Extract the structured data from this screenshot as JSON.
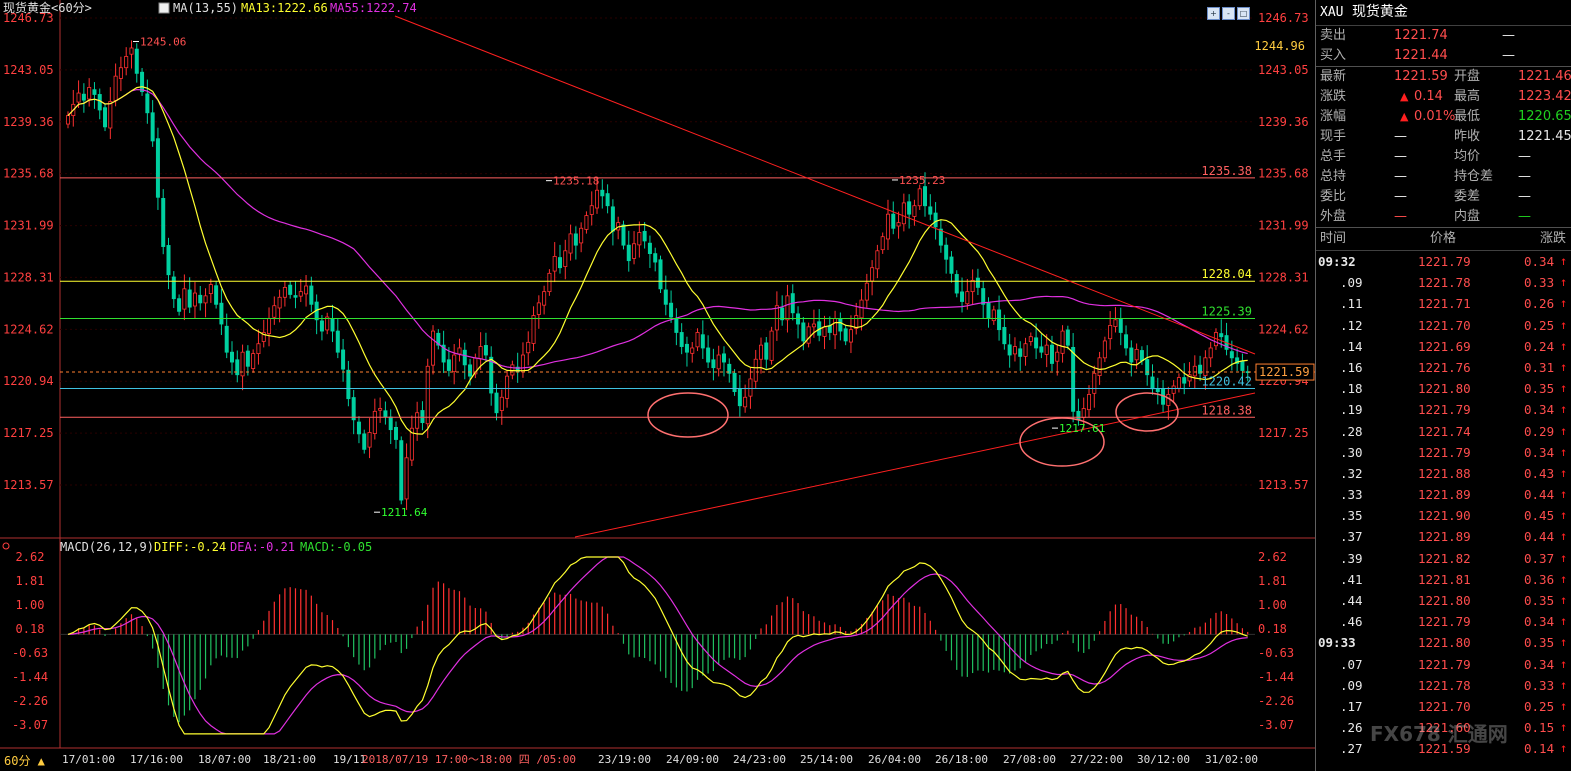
{
  "main": {
    "title": "现货黄金<60分>",
    "ma_label": "MA(13,55)",
    "ma13": "MA13:1222.66",
    "ma55": "MA55:1222.74",
    "colors": {
      "up": "#ff3030",
      "down": "#00d0a0",
      "ma13": "#ffff30",
      "ma55": "#e030e0",
      "axis": "#ff4040",
      "grid": "#400000"
    }
  },
  "macd": {
    "label": "MACD(26,12,9)",
    "diff": "DIFF:-0.24",
    "dea": "DEA:-0.21",
    "macd": "MACD:-0.05"
  },
  "chart_data": {
    "type": "candlestick",
    "price_ticks": [
      "1246.73",
      "1243.05",
      "1239.36",
      "1235.68",
      "1231.99",
      "1228.31",
      "1224.62",
      "1220.94",
      "1217.25",
      "1213.57"
    ],
    "price_range": [
      1211.64,
      1246.73
    ],
    "macd_ticks": [
      "2.62",
      "1.81",
      "1.00",
      "0.18",
      "-0.63",
      "-1.44",
      "-2.26",
      "-3.07"
    ],
    "macd_range": [
      -3.5,
      2.62
    ],
    "time_labels": [
      "17/01:00",
      "17/16:00",
      "18/07:00",
      "18/21:00",
      "19/11",
      "2018/07/19  17:00～18:00  四 /05:00",
      "23/19:00",
      "24/09:00",
      "24/23:00",
      "25/14:00",
      "26/04:00",
      "26/18:00",
      "27/08:00",
      "27/22:00",
      "30/12:00",
      "31/02:00"
    ],
    "annotations": [
      {
        "text": "1245.06",
        "price": 1245.06,
        "color": "#ff5050"
      },
      {
        "text": "1235.18",
        "price": 1235.18,
        "color": "#ff5050"
      },
      {
        "text": "1235.23",
        "price": 1235.23,
        "color": "#ff5050"
      },
      {
        "text": "1211.64",
        "price": 1211.64,
        "color": "#30ff30"
      },
      {
        "text": "1217.61",
        "price": 1217.61,
        "color": "#30ff30"
      }
    ],
    "hlines": [
      {
        "price": 1235.38,
        "label": "1235.38",
        "color": "#ff6060"
      },
      {
        "price": 1228.04,
        "label": "1228.04",
        "color": "#ffff30"
      },
      {
        "price": 1225.39,
        "label": "1225.39",
        "color": "#30e030"
      },
      {
        "price": 1218.38,
        "label": "1218.38",
        "color": "#ff6060"
      },
      {
        "price": 1220.42,
        "label": "1220.42",
        "color": "#40c0e0"
      }
    ],
    "current": {
      "price": 1221.59,
      "label": "1221.59"
    },
    "top_right_label": "1244.96",
    "closes": [
      1239.8,
      1240.6,
      1241.4,
      1240.9,
      1241.8,
      1241.3,
      1240.2,
      1239.0,
      1240.8,
      1242.6,
      1243.2,
      1244.0,
      1244.6,
      1242.8,
      1241.5,
      1240.0,
      1238.0,
      1234.0,
      1230.5,
      1228.5,
      1226.8,
      1225.9,
      1227.5,
      1226.2,
      1227.2,
      1226.5,
      1227.0,
      1227.8,
      1226.4,
      1225.0,
      1223.0,
      1222.3,
      1221.4,
      1223.0,
      1222.0,
      1222.9,
      1223.6,
      1224.4,
      1225.4,
      1226.3,
      1226.9,
      1227.6,
      1227.1,
      1226.9,
      1227.3,
      1227.7,
      1226.4,
      1225.3,
      1224.5,
      1225.5,
      1224.5,
      1223.0,
      1221.8,
      1219.7,
      1218.2,
      1217.2,
      1216.1,
      1217.3,
      1218.8,
      1219.0,
      1218.4,
      1217.5,
      1216.8,
      1212.5,
      1215.5,
      1217.6,
      1218.7,
      1218.0,
      1222.0,
      1224.5,
      1223.5,
      1222.3,
      1221.7,
      1222.8,
      1223.3,
      1222.1,
      1221.3,
      1222.6,
      1223.4,
      1222.8,
      1220.1,
      1218.7,
      1219.8,
      1221.3,
      1222.1,
      1221.6,
      1222.8,
      1223.7,
      1225.6,
      1226.5,
      1227.3,
      1228.6,
      1229.8,
      1229.0,
      1230.2,
      1231.4,
      1230.6,
      1231.8,
      1232.7,
      1233.4,
      1234.5,
      1234.1,
      1233.4,
      1231.6,
      1232.2,
      1230.6,
      1229.5,
      1230.7,
      1231.5,
      1230.9,
      1230.0,
      1229.4,
      1227.5,
      1226.4,
      1225.5,
      1224.4,
      1223.4,
      1223.0,
      1223.3,
      1224.4,
      1223.3,
      1222.3,
      1221.9,
      1222.8,
      1222.3,
      1221.5,
      1220.2,
      1219.2,
      1219.8,
      1221.1,
      1222.5,
      1223.5,
      1222.5,
      1224.5,
      1226.3,
      1225.3,
      1227.0,
      1225.8,
      1225.0,
      1223.8,
      1224.8,
      1225.0,
      1224.2,
      1224.8,
      1224.4,
      1225.4,
      1224.5,
      1223.8,
      1224.6,
      1225.6,
      1226.7,
      1227.9,
      1229.0,
      1230.2,
      1231.2,
      1232.8,
      1231.8,
      1232.2,
      1233.6,
      1232.8,
      1233.4,
      1234.6,
      1233.4,
      1232.8,
      1231.9,
      1230.6,
      1229.6,
      1228.6,
      1227.2,
      1226.6,
      1227.3,
      1228.1,
      1227.6,
      1226.4,
      1225.4,
      1226.0,
      1224.6,
      1223.6,
      1222.8,
      1223.4,
      1222.7,
      1223.6,
      1224.1,
      1223.3,
      1223.0,
      1223.5,
      1222.2,
      1223.0,
      1224.5,
      1223.5,
      1218.8,
      1218.2,
      1219.0,
      1220.0,
      1221.5,
      1222.6,
      1223.8,
      1224.9,
      1225.3,
      1224.4,
      1223.3,
      1222.3,
      1223.2,
      1222.4,
      1221.4,
      1220.4,
      1220.2,
      1219.3,
      1220.0,
      1220.6,
      1221.2,
      1220.8,
      1221.4,
      1222.0,
      1221.5,
      1222.6,
      1223.3,
      1224.4,
      1224.1,
      1223.2,
      1222.6,
      1222.2,
      1221.7,
      1221.59
    ]
  },
  "quote_panel": {
    "symbol": "XAU",
    "name": "现货黄金",
    "sell_label": "卖出",
    "sell_price": "1221.74",
    "sell_vol": "—",
    "buy_label": "买入",
    "buy_price": "1221.44",
    "buy_vol": "—",
    "rows": [
      {
        "l1": "最新",
        "v1": "1221.59",
        "l2": "开盘",
        "v2": "1221.46",
        "c1": "red",
        "c2": "red"
      },
      {
        "l1": "涨跌",
        "v1": "0.14",
        "l2": "最高",
        "v2": "1223.42",
        "c1": "red",
        "c2": "red",
        "arrow": true
      },
      {
        "l1": "涨幅",
        "v1": "0.01%",
        "l2": "最低",
        "v2": "1220.65",
        "c1": "red",
        "c2": "grn",
        "arrow": true
      },
      {
        "l1": "现手",
        "v1": "—",
        "l2": "昨收",
        "v2": "1221.45",
        "c1": "wht",
        "c2": "wht"
      },
      {
        "l1": "总手",
        "v1": "—",
        "l2": "均价",
        "v2": "—",
        "c1": "wht",
        "c2": "wht"
      },
      {
        "l1": "总持",
        "v1": "—",
        "l2": "持仓差",
        "v2": "—",
        "c1": "wht",
        "c2": "wht"
      },
      {
        "l1": "委比",
        "v1": "—",
        "l2": "委差",
        "v2": "—",
        "c1": "wht",
        "c2": "wht"
      },
      {
        "l1": "外盘",
        "v1": "—",
        "l2": "内盘",
        "v2": "—",
        "c1": "red",
        "c2": "grn"
      }
    ],
    "tick_header": {
      "time": "时间",
      "price": "价格",
      "change": "涨跌"
    },
    "ticks": [
      {
        "t": "09:32",
        "p": "1221.79",
        "c": "0.34",
        "bold": true
      },
      {
        "t": ".09",
        "p": "1221.78",
        "c": "0.33"
      },
      {
        "t": ".11",
        "p": "1221.71",
        "c": "0.26"
      },
      {
        "t": ".12",
        "p": "1221.70",
        "c": "0.25"
      },
      {
        "t": ".14",
        "p": "1221.69",
        "c": "0.24"
      },
      {
        "t": ".16",
        "p": "1221.76",
        "c": "0.31"
      },
      {
        "t": ".18",
        "p": "1221.80",
        "c": "0.35"
      },
      {
        "t": ".19",
        "p": "1221.79",
        "c": "0.34"
      },
      {
        "t": ".28",
        "p": "1221.74",
        "c": "0.29"
      },
      {
        "t": ".30",
        "p": "1221.79",
        "c": "0.34"
      },
      {
        "t": ".32",
        "p": "1221.88",
        "c": "0.43"
      },
      {
        "t": ".33",
        "p": "1221.89",
        "c": "0.44"
      },
      {
        "t": ".35",
        "p": "1221.90",
        "c": "0.45"
      },
      {
        "t": ".37",
        "p": "1221.89",
        "c": "0.44"
      },
      {
        "t": ".39",
        "p": "1221.82",
        "c": "0.37"
      },
      {
        "t": ".41",
        "p": "1221.81",
        "c": "0.36"
      },
      {
        "t": ".44",
        "p": "1221.80",
        "c": "0.35"
      },
      {
        "t": ".46",
        "p": "1221.79",
        "c": "0.34"
      },
      {
        "t": "09:33",
        "p": "1221.80",
        "c": "0.35",
        "bold": true
      },
      {
        "t": ".07",
        "p": "1221.79",
        "c": "0.34"
      },
      {
        "t": ".09",
        "p": "1221.78",
        "c": "0.33"
      },
      {
        "t": ".17",
        "p": "1221.70",
        "c": "0.25"
      },
      {
        "t": ".26",
        "p": "1221.60",
        "c": "0.15"
      },
      {
        "t": ".27",
        "p": "1221.59",
        "c": "0.14"
      }
    ]
  },
  "footer": {
    "period": "60分"
  },
  "watermark": "FX678 汇通网"
}
